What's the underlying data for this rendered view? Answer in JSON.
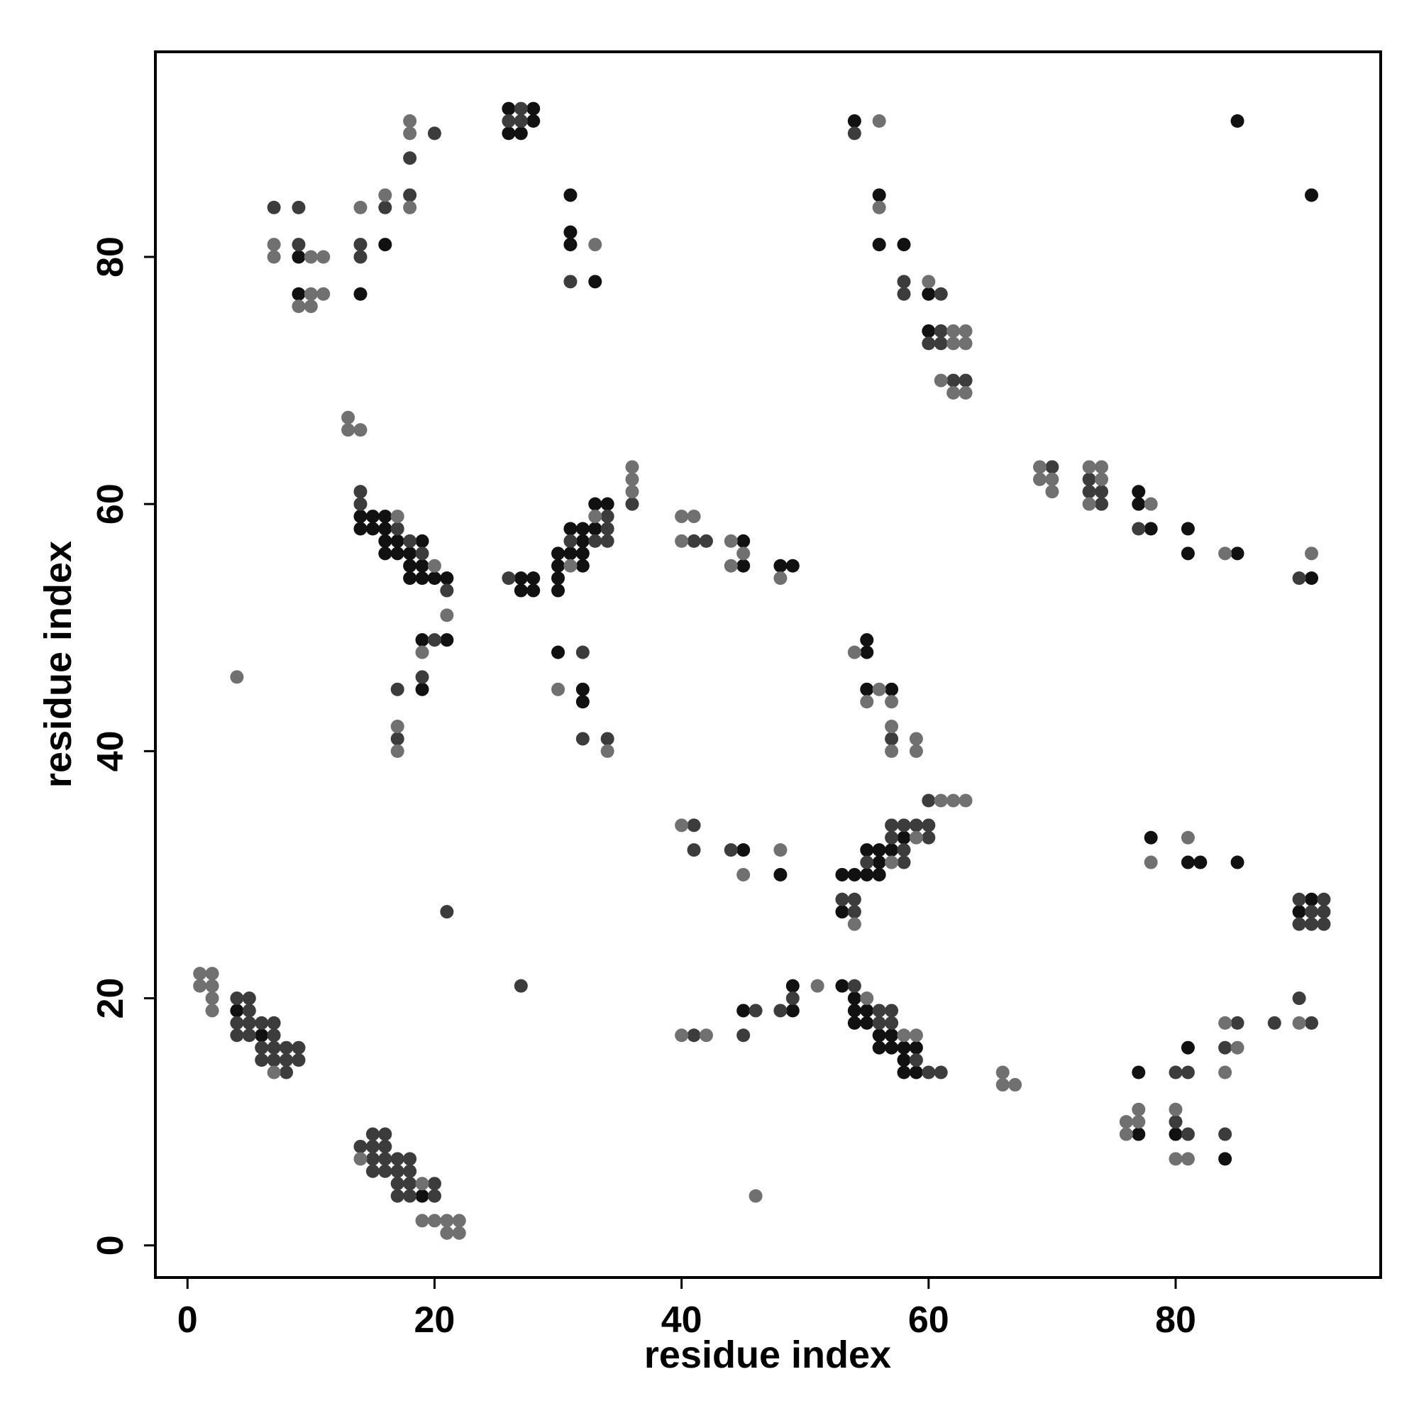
{
  "chart_data": {
    "type": "scatter",
    "xlabel": "residue index",
    "ylabel": "residue index",
    "xlim": [
      -2.6,
      96.6
    ],
    "ylim": [
      -2.6,
      96.6
    ],
    "xticks": [
      0,
      20,
      40,
      60,
      80
    ],
    "yticks": [
      0,
      20,
      40,
      60,
      80
    ],
    "grid": false,
    "series": [
      {
        "color": "#111111",
        "x": [
          4,
          6,
          19,
          14,
          14,
          15,
          16,
          15,
          16,
          16,
          17,
          19,
          16,
          17,
          18,
          18,
          19,
          18,
          19,
          20,
          21,
          19,
          21,
          19,
          27,
          28,
          27,
          28,
          30,
          30,
          30,
          30,
          31,
          32,
          32,
          31,
          32,
          32,
          33,
          34,
          33,
          30,
          32,
          32,
          9,
          9,
          14,
          16,
          26,
          28,
          28,
          26,
          27,
          31,
          31,
          31,
          33,
          45,
          45,
          48,
          49,
          45,
          48,
          45,
          49,
          49,
          53,
          54,
          55,
          53,
          55,
          56,
          56,
          56,
          57,
          58,
          53,
          54,
          54,
          55,
          54,
          55,
          56,
          57,
          56,
          57,
          58,
          59,
          58,
          58,
          59,
          55,
          55,
          55,
          57,
          54,
          56,
          56,
          58,
          60,
          60,
          85,
          91,
          77,
          77,
          78,
          81,
          81,
          85,
          91,
          78,
          81,
          82,
          85,
          91,
          90,
          81,
          77,
          77,
          80,
          84
        ],
        "values": [
          19,
          17,
          4,
          59,
          58,
          59,
          59,
          58,
          58,
          57,
          57,
          57,
          56,
          56,
          56,
          55,
          55,
          54,
          54,
          54,
          54,
          49,
          49,
          45,
          54,
          54,
          53,
          53,
          56,
          55,
          54,
          53,
          58,
          58,
          57,
          56,
          56,
          55,
          60,
          60,
          58,
          48,
          45,
          44,
          80,
          77,
          77,
          81,
          92,
          92,
          91,
          90,
          90,
          85,
          82,
          81,
          78,
          57,
          55,
          55,
          55,
          32,
          30,
          19,
          21,
          19,
          30,
          30,
          30,
          27,
          32,
          32,
          31,
          30,
          32,
          33,
          21,
          20,
          19,
          19,
          18,
          18,
          17,
          17,
          16,
          16,
          16,
          16,
          15,
          14,
          14,
          48,
          49,
          45,
          45,
          91,
          85,
          81,
          81,
          77,
          74,
          91,
          85,
          61,
          60,
          58,
          58,
          56,
          56,
          54,
          33,
          31,
          31,
          31,
          28,
          27,
          16,
          14,
          9,
          9,
          7
        ]
      },
      {
        "color": "#3c3c3c",
        "x": [
          4,
          5,
          5,
          4,
          5,
          4,
          5,
          6,
          7,
          7,
          6,
          7,
          6,
          7,
          8,
          9,
          8,
          9,
          8,
          15,
          16,
          14,
          15,
          16,
          15,
          16,
          17,
          18,
          15,
          16,
          17,
          18,
          17,
          18,
          20,
          17,
          18,
          20,
          21,
          27,
          14,
          14,
          17,
          18,
          19,
          21,
          20,
          19,
          17,
          17,
          26,
          31,
          34,
          34,
          33,
          34,
          36,
          32,
          32,
          34,
          7,
          9,
          9,
          14,
          14,
          16,
          20,
          18,
          18,
          27,
          26,
          27,
          31,
          41,
          42,
          41,
          41,
          44,
          46,
          45,
          48,
          49,
          41,
          53,
          54,
          54,
          55,
          58,
          58,
          57,
          58,
          59,
          60,
          57,
          60,
          60,
          54,
          56,
          57,
          56,
          57,
          59,
          60,
          61,
          57,
          54,
          58,
          58,
          61,
          61,
          60,
          61,
          62,
          63,
          70,
          73,
          73,
          74,
          74,
          77,
          90,
          90,
          92,
          91,
          92,
          90,
          91,
          92,
          90,
          91,
          88,
          85,
          84,
          80,
          81,
          80,
          81,
          84
        ],
        "values": [
          20,
          20,
          19,
          18,
          18,
          17,
          17,
          18,
          18,
          17,
          16,
          16,
          15,
          15,
          16,
          16,
          15,
          15,
          14,
          9,
          9,
          8,
          8,
          8,
          7,
          7,
          7,
          7,
          6,
          6,
          6,
          6,
          5,
          5,
          5,
          4,
          4,
          4,
          27,
          21,
          61,
          60,
          58,
          57,
          56,
          53,
          49,
          46,
          45,
          41,
          54,
          57,
          59,
          58,
          57,
          57,
          60,
          48,
          41,
          41,
          84,
          84,
          81,
          81,
          80,
          84,
          90,
          88,
          85,
          92,
          91,
          91,
          78,
          57,
          57,
          34,
          32,
          32,
          19,
          17,
          19,
          20,
          17,
          28,
          28,
          27,
          31,
          32,
          31,
          34,
          34,
          34,
          34,
          33,
          33,
          36,
          21,
          19,
          19,
          18,
          18,
          15,
          14,
          14,
          41,
          90,
          78,
          77,
          77,
          74,
          73,
          73,
          70,
          70,
          63,
          62,
          61,
          61,
          60,
          58,
          54,
          28,
          28,
          27,
          27,
          26,
          26,
          26,
          20,
          18,
          18,
          18,
          16,
          14,
          14,
          10,
          9,
          9
        ]
      },
      {
        "color": "#707070",
        "x": [
          1,
          2,
          1,
          2,
          2,
          2,
          7,
          14,
          19,
          19,
          20,
          21,
          22,
          21,
          22,
          4,
          46,
          13,
          13,
          14,
          17,
          20,
          21,
          19,
          17,
          17,
          31,
          33,
          36,
          36,
          36,
          30,
          34,
          7,
          7,
          10,
          11,
          10,
          11,
          9,
          10,
          14,
          16,
          18,
          18,
          18,
          33,
          40,
          41,
          40,
          44,
          45,
          44,
          48,
          40,
          45,
          48,
          40,
          42,
          51,
          54,
          57,
          59,
          61,
          62,
          63,
          55,
          58,
          59,
          66,
          66,
          67,
          54,
          55,
          56,
          57,
          57,
          57,
          59,
          59,
          56,
          56,
          60,
          62,
          63,
          62,
          63,
          61,
          62,
          63,
          69,
          69,
          70,
          70,
          73,
          74,
          74,
          73,
          78,
          84,
          91,
          78,
          81,
          90,
          84,
          85,
          84,
          76,
          77,
          77,
          76,
          80,
          80,
          81
        ],
        "values": [
          22,
          22,
          21,
          21,
          20,
          19,
          14,
          7,
          5,
          2,
          2,
          2,
          2,
          1,
          1,
          46,
          4,
          67,
          66,
          66,
          59,
          55,
          51,
          48,
          42,
          40,
          55,
          59,
          63,
          62,
          61,
          45,
          40,
          81,
          80,
          80,
          80,
          77,
          77,
          76,
          76,
          84,
          85,
          91,
          90,
          84,
          81,
          59,
          59,
          57,
          57,
          56,
          55,
          54,
          34,
          30,
          32,
          17,
          17,
          21,
          26,
          31,
          33,
          36,
          36,
          36,
          20,
          17,
          17,
          14,
          13,
          13,
          48,
          44,
          45,
          44,
          42,
          40,
          41,
          40,
          91,
          84,
          78,
          74,
          74,
          73,
          73,
          70,
          69,
          69,
          63,
          62,
          62,
          61,
          63,
          63,
          62,
          60,
          60,
          56,
          56,
          31,
          33,
          18,
          18,
          16,
          14,
          10,
          10,
          11,
          9,
          11,
          7,
          7
        ]
      }
    ]
  }
}
